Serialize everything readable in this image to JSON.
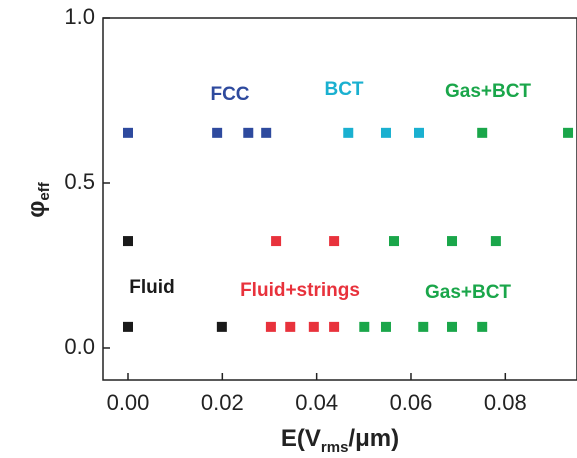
{
  "chart_data": {
    "type": "scatter",
    "xlabel": {
      "main": "E(V",
      "sub": "rms",
      "tail": "/μm)"
    },
    "ylabel": {
      "main": "φ",
      "sub": "eff"
    },
    "xlim": [
      -0.0053,
      0.0952
    ],
    "ylim": [
      -0.097,
      1.0
    ],
    "xticks": [
      {
        "value": 0,
        "label": "0.00"
      },
      {
        "value": 0.02,
        "label": "0.02"
      },
      {
        "value": 0.04,
        "label": "0.04"
      },
      {
        "value": 0.06,
        "label": "0.06"
      },
      {
        "value": 0.08,
        "label": "0.08"
      }
    ],
    "yticks": [
      {
        "value": 0,
        "label": "0.0"
      },
      {
        "value": 0.5,
        "label": "0.5"
      },
      {
        "value": 1,
        "label": "1.0"
      }
    ],
    "series": [
      {
        "name": "FCC",
        "color": "#2e4a9e",
        "x": [
          0,
          0.0189,
          0.0255,
          0.0293
        ],
        "values": [
          0.652,
          0.652,
          0.652,
          0.652
        ]
      },
      {
        "name": "BCT",
        "color": "#1ab0d0",
        "x": [
          0.0467,
          0.0547,
          0.0617
        ],
        "values": [
          0.652,
          0.652,
          0.652
        ]
      },
      {
        "name": "Gas+BCT",
        "color": "#1aa64a",
        "x": [
          0.0751,
          0.0933
        ],
        "values": [
          0.652,
          0.652
        ]
      },
      {
        "name": "Fluid",
        "color": "#1a1a1a",
        "x": [
          0,
          0,
          0.0199
        ],
        "values": [
          0.324,
          0.064,
          0.064
        ]
      },
      {
        "name": "Fluid+strings",
        "color": "#e8323c",
        "x": [
          0.0314,
          0.0437,
          0.0303,
          0.0344,
          0.0394,
          0.0437
        ],
        "values": [
          0.324,
          0.324,
          0.064,
          0.064,
          0.064,
          0.064
        ]
      },
      {
        "name": "Gas+BCT",
        "color": "#1aa64a",
        "x": [
          0.0564,
          0.0687,
          0.078,
          0.0501,
          0.0547,
          0.0626,
          0.0687,
          0.0751
        ],
        "values": [
          0.324,
          0.324,
          0.324,
          0.064,
          0.064,
          0.064,
          0.064,
          0.064
        ]
      }
    ]
  }
}
